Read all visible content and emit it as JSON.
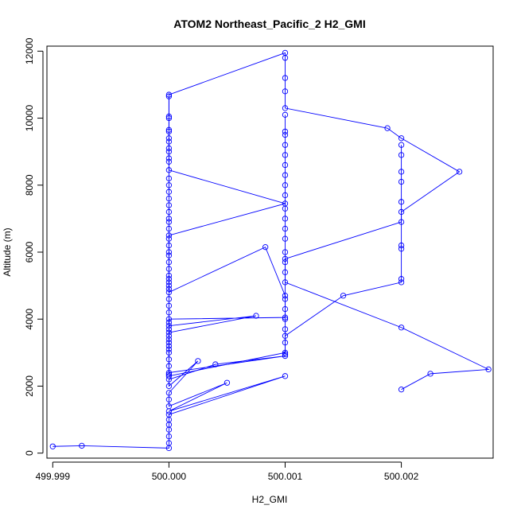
{
  "chart_data": {
    "type": "scatter",
    "title": "ATOM2 Northeast_Pacific_2 H2_GMI",
    "xlabel": "H2_GMI",
    "ylabel": "Altitude (m)",
    "xlim": [
      499.99895,
      500.00279
    ],
    "ylim": [
      -150,
      12150
    ],
    "xticks": [
      499.999,
      500.0,
      500.001,
      500.002
    ],
    "xtick_labels": [
      "499.999",
      "500.000",
      "500.001",
      "500.002"
    ],
    "yticks": [
      0,
      2000,
      4000,
      6000,
      8000,
      10000,
      12000
    ],
    "ytick_labels": [
      "0",
      "2000",
      "4000",
      "6000",
      "8000",
      "10000",
      "12000"
    ],
    "grid": false,
    "legend": "none",
    "series": [
      {
        "color": "#0000ff",
        "marker": "open-circle",
        "connected": true,
        "points": [
          [
            499.999,
            200
          ],
          [
            499.99925,
            220
          ],
          [
            500.0,
            150
          ],
          [
            500.0,
            300
          ],
          [
            500.0,
            500
          ],
          [
            500.0,
            700
          ],
          [
            500.0,
            850
          ],
          [
            500.0,
            1000
          ],
          [
            500.0,
            1150
          ],
          [
            500.001,
            2300
          ],
          [
            500.0,
            1250
          ],
          [
            500.0005,
            2100
          ],
          [
            500.0,
            1400
          ],
          [
            500.0,
            1600
          ],
          [
            500.0,
            1800
          ],
          [
            500.00025,
            2750
          ],
          [
            500.0,
            2000
          ],
          [
            500.0,
            2200
          ],
          [
            500.0004,
            2650
          ],
          [
            500.001,
            2900
          ],
          [
            500.0,
            2400
          ],
          [
            500.0,
            2600
          ],
          [
            500.0,
            2800
          ],
          [
            500.0,
            3000
          ],
          [
            500.0,
            3200
          ],
          [
            500.0,
            3400
          ],
          [
            500.0,
            3600
          ],
          [
            500.00075,
            4100
          ],
          [
            500.0,
            3800
          ],
          [
            500.0,
            4000
          ],
          [
            500.001,
            4050
          ],
          [
            500.001,
            4300
          ],
          [
            500.001,
            4700
          ],
          [
            500.00083,
            6150
          ],
          [
            500.0,
            4800
          ],
          [
            500.0,
            5000
          ],
          [
            500.0,
            5200
          ],
          [
            500.0,
            5500
          ],
          [
            500.0,
            6000
          ],
          [
            500.0,
            6500
          ],
          [
            500.001,
            7450
          ],
          [
            500.0,
            8450
          ],
          [
            500.0,
            8800
          ],
          [
            500.0,
            9300
          ],
          [
            500.0,
            9650
          ],
          [
            500.0,
            10000
          ],
          [
            500.0,
            10700
          ],
          [
            500.001,
            11950
          ],
          [
            500.001,
            11800
          ],
          [
            500.001,
            11200
          ],
          [
            500.001,
            10800
          ],
          [
            500.001,
            10300
          ],
          [
            500.00188,
            9700
          ],
          [
            500.002,
            9400
          ],
          [
            500.0025,
            8400
          ],
          [
            500.002,
            7200
          ],
          [
            500.002,
            6900
          ],
          [
            500.001,
            5800
          ],
          [
            500.001,
            5100
          ],
          [
            500.002,
            3750
          ],
          [
            500.00275,
            2500
          ],
          [
            500.00225,
            2370
          ],
          [
            500.002,
            1900
          ]
        ]
      },
      {
        "color": "#0000ff",
        "marker": "open-circle",
        "connected": true,
        "points": [
          [
            500.0,
            2300
          ],
          [
            500.001,
            3000
          ],
          [
            500.001,
            3500
          ],
          [
            500.0015,
            4700
          ],
          [
            500.002,
            5100
          ],
          [
            500.002,
            5200
          ],
          [
            500.002,
            6100
          ],
          [
            500.002,
            6200
          ],
          [
            500.002,
            7500
          ],
          [
            500.002,
            8100
          ],
          [
            500.002,
            8400
          ],
          [
            500.002,
            8900
          ],
          [
            500.002,
            9200
          ]
        ]
      },
      {
        "color": "#0000ff",
        "marker": "open-circle",
        "connected": true,
        "points": [
          [
            500.001,
            2950
          ],
          [
            500.001,
            3300
          ],
          [
            500.001,
            3700
          ],
          [
            500.001,
            4000
          ],
          [
            500.001,
            4600
          ],
          [
            500.001,
            5400
          ],
          [
            500.001,
            5700
          ],
          [
            500.001,
            6000
          ],
          [
            500.001,
            6400
          ],
          [
            500.001,
            6700
          ],
          [
            500.001,
            7000
          ],
          [
            500.001,
            7300
          ],
          [
            500.001,
            7700
          ],
          [
            500.001,
            8000
          ],
          [
            500.001,
            8300
          ],
          [
            500.001,
            8600
          ],
          [
            500.001,
            8900
          ],
          [
            500.001,
            9200
          ],
          [
            500.001,
            9500
          ],
          [
            500.001,
            9600
          ],
          [
            500.001,
            10100
          ]
        ]
      },
      {
        "color": "#0000ff",
        "marker": "open-circle",
        "connected": true,
        "points": [
          [
            500.0,
            2350
          ],
          [
            500.0,
            3100
          ],
          [
            500.0,
            3300
          ],
          [
            500.0,
            3500
          ],
          [
            500.0,
            3700
          ],
          [
            500.0,
            3900
          ],
          [
            500.0,
            4200
          ],
          [
            500.0,
            4400
          ],
          [
            500.0,
            4600
          ],
          [
            500.0,
            4900
          ],
          [
            500.0,
            5100
          ],
          [
            500.0,
            5300
          ],
          [
            500.0,
            5700
          ],
          [
            500.0,
            5900
          ],
          [
            500.0,
            6200
          ],
          [
            500.0,
            6400
          ],
          [
            500.0,
            6700
          ],
          [
            500.0,
            6900
          ],
          [
            500.0,
            7000
          ],
          [
            500.0,
            7200
          ],
          [
            500.0,
            7400
          ],
          [
            500.0,
            7600
          ],
          [
            500.0,
            7800
          ],
          [
            500.0,
            8000
          ],
          [
            500.0,
            8200
          ],
          [
            500.0,
            8700
          ],
          [
            500.0,
            9000
          ],
          [
            500.0,
            9100
          ],
          [
            500.0,
            9400
          ],
          [
            500.0,
            9600
          ],
          [
            500.0,
            10050
          ],
          [
            500.0,
            10650
          ]
        ]
      }
    ]
  }
}
